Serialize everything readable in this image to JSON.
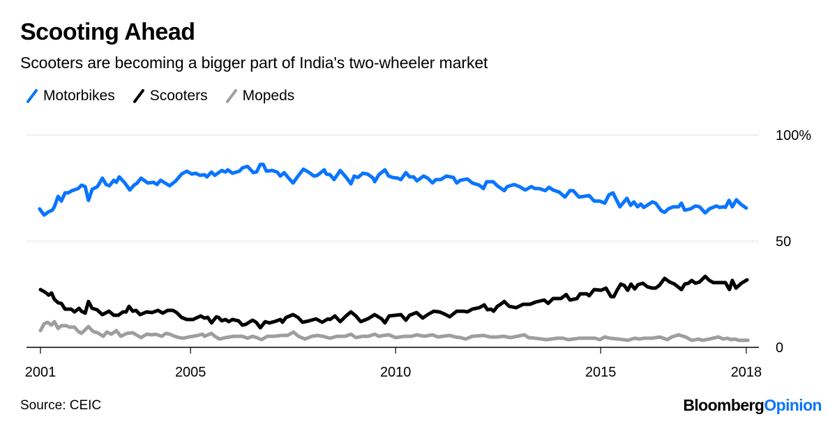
{
  "header": {
    "title": "Scooting Ahead",
    "subtitle": "Scooters are becoming a bigger part of India's two-wheeler market"
  },
  "footer": {
    "source": "Source: CEIC",
    "logo_part1": "Bloomberg",
    "logo_part2": "Opinion"
  },
  "colors": {
    "motorbikes": "#0a75ff",
    "scooters": "#000000",
    "mopeds": "#9e9e9e",
    "grid": "#eeeeee",
    "axis": "#000000",
    "logo_accent": "#0a75ff"
  },
  "chart_data": {
    "type": "line",
    "title": "Scooting Ahead",
    "subtitle": "Scooters are becoming a bigger part of India's two-wheeler market",
    "xlabel": "",
    "ylabel": "",
    "xlim": [
      2000.66,
      2018.7
    ],
    "ylim": [
      0,
      100
    ],
    "x_ticks": [
      {
        "value": 2001.34,
        "label": "2001"
      },
      {
        "value": 2005.0,
        "label": "2005"
      },
      {
        "value": 2010.0,
        "label": "2010"
      },
      {
        "value": 2015.0,
        "label": "2015"
      },
      {
        "value": 2018.55,
        "label": "2018"
      }
    ],
    "y_ticks": [
      {
        "value": 100,
        "label": "100%"
      },
      {
        "value": 50,
        "label": "50"
      },
      {
        "value": 0,
        "label": "0"
      }
    ],
    "grid": true,
    "legend_position": "top-left",
    "series": [
      {
        "name": "Motorbikes",
        "color": "#0a75ff",
        "x": [
          2001.32,
          2001.43,
          2001.54,
          2001.63,
          2001.68,
          2001.77,
          2001.85,
          2001.94,
          2002.02,
          2002.11,
          2002.26,
          2002.34,
          2002.43,
          2002.51,
          2002.6,
          2002.73,
          2002.85,
          2002.94,
          2003.02,
          2003.13,
          2003.19,
          2003.26,
          2003.4,
          2003.52,
          2003.62,
          2003.7,
          2003.79,
          2003.96,
          2004.1,
          2004.18,
          2004.27,
          2004.49,
          2004.64,
          2004.78,
          2004.91,
          2005.03,
          2005.12,
          2005.23,
          2005.34,
          2005.4,
          2005.51,
          2005.59,
          2005.76,
          2005.85,
          2005.91,
          2006.02,
          2006.19,
          2006.27,
          2006.39,
          2006.53,
          2006.61,
          2006.7,
          2006.77,
          2006.85,
          2006.99,
          2007.11,
          2007.19,
          2007.28,
          2007.38,
          2007.5,
          2007.62,
          2007.75,
          2007.87,
          2008.01,
          2008.09,
          2008.26,
          2008.31,
          2008.4,
          2008.5,
          2008.65,
          2008.81,
          2008.91,
          2008.99,
          2009.08,
          2009.2,
          2009.32,
          2009.45,
          2009.49,
          2009.59,
          2009.74,
          2009.83,
          2009.93,
          2010.05,
          2010.13,
          2010.25,
          2010.34,
          2010.44,
          2010.52,
          2010.68,
          2010.78,
          2010.9,
          2010.98,
          2011.1,
          2011.24,
          2011.41,
          2011.49,
          2011.58,
          2011.75,
          2011.87,
          2012.04,
          2012.14,
          2012.22,
          2012.38,
          2012.48,
          2012.65,
          2012.72,
          2012.89,
          2013.02,
          2013.16,
          2013.31,
          2013.4,
          2013.5,
          2013.65,
          2013.74,
          2013.84,
          2013.99,
          2014.13,
          2014.25,
          2014.33,
          2014.47,
          2014.59,
          2014.72,
          2014.84,
          2014.98,
          2015.1,
          2015.2,
          2015.3,
          2015.47,
          2015.64,
          2015.73,
          2015.81,
          2015.9,
          2015.98,
          2016.05,
          2016.26,
          2016.34,
          2016.48,
          2016.56,
          2016.65,
          2016.77,
          2016.9,
          2016.97,
          2017.05,
          2017.19,
          2017.31,
          2017.41,
          2017.55,
          2017.65,
          2017.82,
          2017.9,
          2017.99,
          2018.04,
          2018.13,
          2018.21,
          2018.31,
          2018.41,
          2018.55
        ],
        "values": [
          65.2,
          62.3,
          63.9,
          64.6,
          66.2,
          71.1,
          68.9,
          72.8,
          72.8,
          73.8,
          74.8,
          76.4,
          75.7,
          69.2,
          74.4,
          75.7,
          79.7,
          76.7,
          76.1,
          78.7,
          77.7,
          80.3,
          77.4,
          74.1,
          76.4,
          77.4,
          79.7,
          77.4,
          77.7,
          76.7,
          78.7,
          76.1,
          78.4,
          81.6,
          83.0,
          81.6,
          82.0,
          81.0,
          81.3,
          80.3,
          82.6,
          81.0,
          83.3,
          82.6,
          83.6,
          82.0,
          83.0,
          84.6,
          85.2,
          82.3,
          82.6,
          86.2,
          86.2,
          83.0,
          83.3,
          82.6,
          80.7,
          82.3,
          80.0,
          77.4,
          80.7,
          83.9,
          82.6,
          80.7,
          81.0,
          83.6,
          81.6,
          81.3,
          79.0,
          83.3,
          79.7,
          77.0,
          80.7,
          80.0,
          82.0,
          81.6,
          79.7,
          78.0,
          81.3,
          83.6,
          80.7,
          80.0,
          79.7,
          79.0,
          82.3,
          80.3,
          80.3,
          78.4,
          80.7,
          79.7,
          77.4,
          79.0,
          79.0,
          80.7,
          80.0,
          77.4,
          78.7,
          79.3,
          77.4,
          76.4,
          74.8,
          78.0,
          78.0,
          76.1,
          73.8,
          75.7,
          76.7,
          75.7,
          74.1,
          75.7,
          74.8,
          74.8,
          73.8,
          75.4,
          74.1,
          73.1,
          70.8,
          73.8,
          73.8,
          70.8,
          71.1,
          71.5,
          68.9,
          68.9,
          67.9,
          71.8,
          72.8,
          66.2,
          70.2,
          66.9,
          68.5,
          66.2,
          67.5,
          65.9,
          68.5,
          67.9,
          64.3,
          63.6,
          65.2,
          66.2,
          66.2,
          67.9,
          64.6,
          65.2,
          66.6,
          66.2,
          63.3,
          65.2,
          66.6,
          65.9,
          66.2,
          65.9,
          69.2,
          66.2,
          69.5,
          67.5,
          65.6
        ]
      },
      {
        "name": "Scooters",
        "color": "#000000",
        "x": [
          2001.34,
          2001.46,
          2001.54,
          2001.61,
          2001.68,
          2001.77,
          2001.85,
          2001.94,
          2002.09,
          2002.17,
          2002.28,
          2002.34,
          2002.43,
          2002.51,
          2002.6,
          2002.72,
          2002.85,
          2003.01,
          2003.13,
          2003.24,
          2003.35,
          2003.43,
          2003.5,
          2003.59,
          2003.67,
          2003.77,
          2003.93,
          2004.06,
          2004.21,
          2004.32,
          2004.44,
          2004.57,
          2004.66,
          2004.78,
          2004.91,
          2005.06,
          2005.17,
          2005.25,
          2005.34,
          2005.42,
          2005.51,
          2005.63,
          2005.68,
          2005.76,
          2005.85,
          2005.93,
          2006.02,
          2006.17,
          2006.26,
          2006.34,
          2006.51,
          2006.6,
          2006.7,
          2006.82,
          2006.92,
          2007.04,
          2007.19,
          2007.24,
          2007.33,
          2007.5,
          2007.62,
          2007.73,
          2007.89,
          2008.06,
          2008.21,
          2008.35,
          2008.4,
          2008.52,
          2008.65,
          2008.81,
          2008.91,
          2009.03,
          2009.15,
          2009.32,
          2009.49,
          2009.66,
          2009.74,
          2009.84,
          2010.0,
          2010.13,
          2010.25,
          2010.34,
          2010.51,
          2010.66,
          2010.78,
          2010.93,
          2011.07,
          2011.19,
          2011.32,
          2011.49,
          2011.66,
          2011.75,
          2011.87,
          2012.04,
          2012.16,
          2012.24,
          2012.33,
          2012.39,
          2012.48,
          2012.56,
          2012.65,
          2012.77,
          2012.94,
          2013.11,
          2013.28,
          2013.41,
          2013.62,
          2013.72,
          2013.84,
          2014.03,
          2014.16,
          2014.25,
          2014.42,
          2014.5,
          2014.66,
          2014.72,
          2014.84,
          2015.01,
          2015.13,
          2015.25,
          2015.32,
          2015.4,
          2015.49,
          2015.57,
          2015.66,
          2015.74,
          2015.83,
          2015.91,
          2016.03,
          2016.14,
          2016.26,
          2016.34,
          2016.43,
          2016.56,
          2016.68,
          2016.8,
          2016.97,
          2017.05,
          2017.14,
          2017.22,
          2017.31,
          2017.41,
          2017.55,
          2017.65,
          2017.75,
          2018.04,
          2018.14,
          2018.21,
          2018.3,
          2018.43,
          2018.57
        ],
        "values": [
          27.2,
          25.9,
          24.6,
          25.6,
          22.6,
          21.0,
          20.7,
          18.0,
          18.0,
          16.7,
          18.4,
          17.0,
          16.1,
          21.6,
          18.4,
          17.7,
          15.4,
          17.0,
          15.1,
          15.1,
          16.7,
          16.7,
          19.3,
          17.0,
          17.4,
          15.4,
          16.7,
          16.4,
          17.4,
          16.1,
          17.4,
          17.4,
          16.4,
          14.1,
          13.1,
          13.1,
          14.1,
          14.8,
          13.8,
          14.1,
          11.5,
          14.4,
          14.1,
          12.5,
          13.1,
          12.1,
          13.1,
          12.5,
          10.5,
          10.8,
          12.8,
          11.8,
          9.2,
          12.1,
          11.5,
          12.1,
          13.1,
          11.8,
          14.1,
          15.4,
          14.1,
          11.8,
          12.5,
          13.4,
          11.8,
          13.4,
          13.1,
          14.8,
          12.1,
          15.1,
          16.7,
          14.8,
          12.1,
          13.4,
          15.4,
          13.4,
          11.5,
          14.8,
          15.1,
          15.4,
          12.8,
          15.1,
          16.4,
          13.8,
          15.4,
          17.0,
          16.7,
          15.7,
          14.4,
          17.0,
          17.0,
          16.7,
          18.0,
          18.7,
          20.0,
          17.7,
          18.0,
          17.0,
          19.3,
          20.3,
          21.6,
          19.3,
          18.7,
          20.3,
          20.3,
          21.3,
          22.3,
          20.7,
          23.0,
          23.0,
          24.9,
          22.3,
          23.0,
          25.2,
          25.2,
          24.3,
          27.2,
          26.9,
          27.9,
          23.9,
          23.9,
          26.9,
          29.8,
          29.2,
          26.9,
          29.8,
          27.5,
          29.5,
          30.2,
          28.5,
          27.9,
          27.9,
          29.2,
          32.5,
          30.8,
          29.8,
          27.2,
          29.8,
          30.2,
          31.5,
          30.2,
          30.8,
          33.4,
          31.5,
          30.5,
          30.5,
          27.2,
          31.5,
          27.9,
          30.2,
          31.8
        ]
      },
      {
        "name": "Mopeds",
        "color": "#9e9e9e",
        "x": [
          2001.34,
          2001.43,
          2001.51,
          2001.61,
          2001.68,
          2001.77,
          2001.85,
          2001.97,
          2002.05,
          2002.17,
          2002.26,
          2002.34,
          2002.51,
          2002.62,
          2002.73,
          2002.87,
          2002.96,
          2003.07,
          2003.19,
          2003.3,
          2003.45,
          2003.59,
          2003.7,
          2003.79,
          2003.93,
          2004.06,
          2004.15,
          2004.3,
          2004.4,
          2004.49,
          2004.61,
          2004.72,
          2004.83,
          2004.95,
          2005.06,
          2005.17,
          2005.29,
          2005.34,
          2005.51,
          2005.59,
          2005.71,
          2005.85,
          2006.05,
          2006.26,
          2006.39,
          2006.51,
          2006.61,
          2006.73,
          2006.87,
          2007.04,
          2007.21,
          2007.36,
          2007.51,
          2007.63,
          2007.79,
          2007.96,
          2008.09,
          2008.23,
          2008.4,
          2008.57,
          2008.77,
          2008.91,
          2009.03,
          2009.2,
          2009.33,
          2009.49,
          2009.59,
          2009.71,
          2009.84,
          2010.0,
          2010.22,
          2010.39,
          2010.52,
          2010.69,
          2010.9,
          2011.03,
          2011.15,
          2011.32,
          2011.46,
          2011.58,
          2011.71,
          2011.87,
          2012.14,
          2012.31,
          2012.48,
          2012.63,
          2012.8,
          2012.97,
          2013.14,
          2013.24,
          2013.4,
          2013.57,
          2013.67,
          2013.79,
          2013.93,
          2014.08,
          2014.21,
          2014.33,
          2014.47,
          2014.64,
          2014.86,
          2014.98,
          2015.1,
          2015.23,
          2015.44,
          2015.66,
          2015.83,
          2015.95,
          2016.05,
          2016.26,
          2016.44,
          2016.63,
          2016.73,
          2016.9,
          2017.07,
          2017.22,
          2017.39,
          2017.48,
          2017.65,
          2017.87,
          2017.99,
          2018.09,
          2018.18,
          2018.26,
          2018.38,
          2018.59
        ],
        "values": [
          7.9,
          11.1,
          11.8,
          10.5,
          12.1,
          8.9,
          10.2,
          10.2,
          9.5,
          9.5,
          7.5,
          6.6,
          9.8,
          7.5,
          6.9,
          5.2,
          7.2,
          6.2,
          7.9,
          5.2,
          6.6,
          6.9,
          5.6,
          4.6,
          6.2,
          5.9,
          6.2,
          5.2,
          6.6,
          6.2,
          5.2,
          4.6,
          4.3,
          4.9,
          5.2,
          5.6,
          6.2,
          5.2,
          6.6,
          5.2,
          3.9,
          4.6,
          5.2,
          5.2,
          4.3,
          5.2,
          4.6,
          3.6,
          5.2,
          5.2,
          5.6,
          5.6,
          7.2,
          5.2,
          3.9,
          5.2,
          5.6,
          5.2,
          4.3,
          5.2,
          5.2,
          6.2,
          4.6,
          5.2,
          5.2,
          6.2,
          5.2,
          5.6,
          5.9,
          4.6,
          5.2,
          5.2,
          5.9,
          5.2,
          5.9,
          4.9,
          5.2,
          5.6,
          4.9,
          4.6,
          3.9,
          5.2,
          5.6,
          4.9,
          4.9,
          5.2,
          4.6,
          5.2,
          5.9,
          4.6,
          4.3,
          3.9,
          3.6,
          3.9,
          4.3,
          4.3,
          3.6,
          3.9,
          4.3,
          4.3,
          4.3,
          3.6,
          4.9,
          4.3,
          3.9,
          3.3,
          4.3,
          3.9,
          4.3,
          4.3,
          4.9,
          3.6,
          4.9,
          5.9,
          4.9,
          3.3,
          3.9,
          3.3,
          3.9,
          4.9,
          3.9,
          4.3,
          3.6,
          3.9,
          3.3,
          3.3
        ]
      }
    ]
  }
}
